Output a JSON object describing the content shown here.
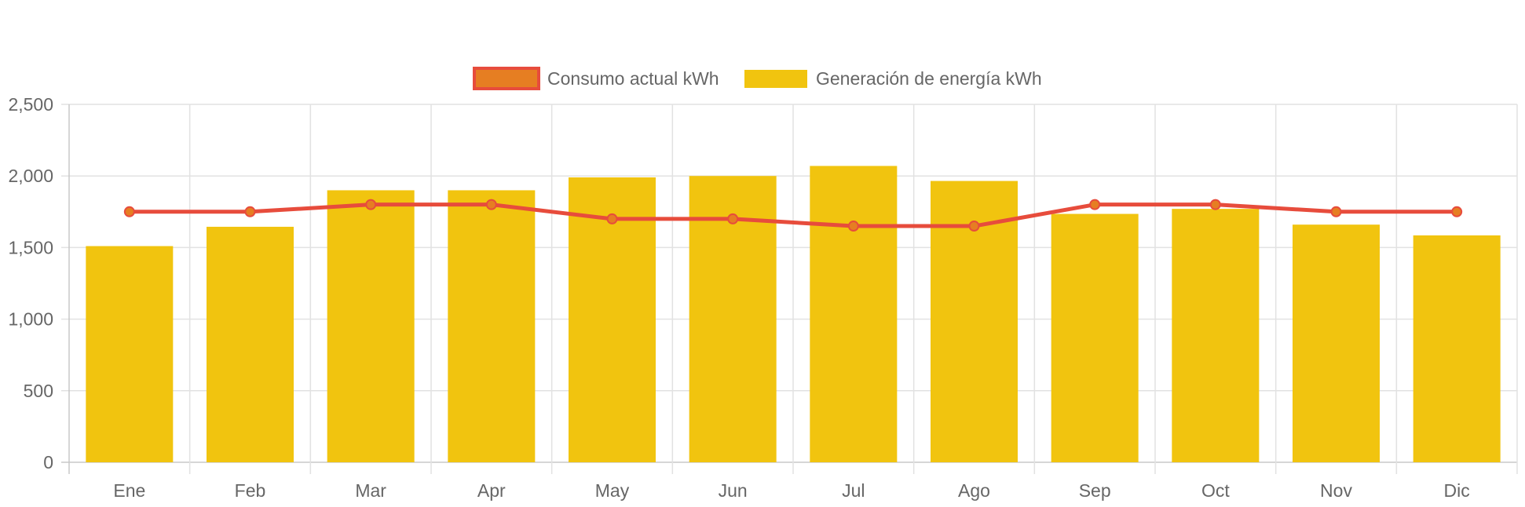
{
  "chart_data": {
    "type": "bar",
    "categories": [
      "Ene",
      "Feb",
      "Mar",
      "Apr",
      "May",
      "Jun",
      "Jul",
      "Ago",
      "Sep",
      "Oct",
      "Nov",
      "Dic"
    ],
    "series": [
      {
        "name": "Consumo actual kWh",
        "type": "line",
        "values": [
          1750,
          1750,
          1800,
          1800,
          1700,
          1700,
          1650,
          1650,
          1800,
          1800,
          1750,
          1750
        ],
        "color": "#e74c3c",
        "point_color": "#e67e22"
      },
      {
        "name": "Generación de energía kWh",
        "type": "bar",
        "values": [
          1510,
          1645,
          1900,
          1900,
          1990,
          2000,
          2070,
          1965,
          1735,
          1770,
          1660,
          1585
        ],
        "color": "#f1c40f"
      }
    ],
    "y_ticks": [
      "0",
      "500",
      "1,000",
      "1,500",
      "2,000",
      "2,500"
    ],
    "ylim": [
      0,
      2500
    ],
    "grid": true,
    "legend_position": "top"
  }
}
